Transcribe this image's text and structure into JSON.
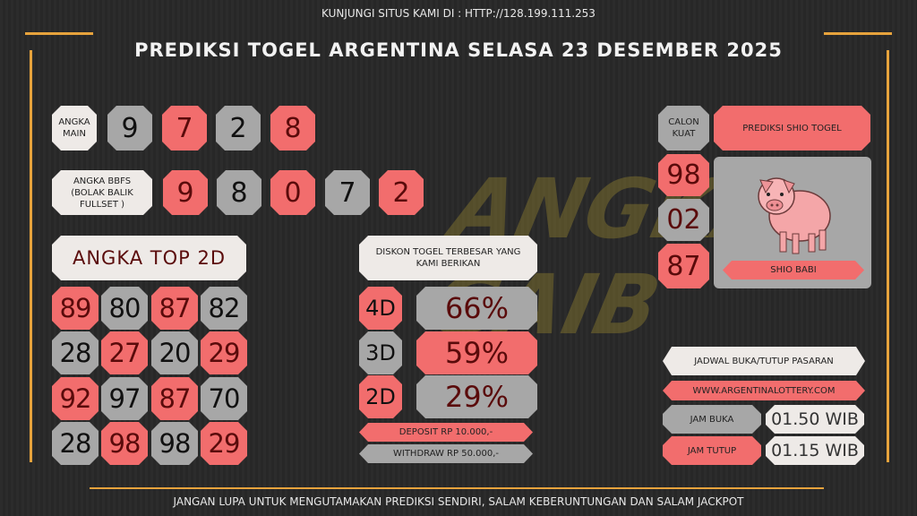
{
  "header": {
    "visit": "KUNJUNGI SITUS KAMI DI : HTTP://128.199.111.253",
    "title": "PREDIKSI TOGEL ARGENTINA SELASA 23 DESEMBER 2025"
  },
  "watermark": "ANGKA GAIB",
  "angka_main": {
    "label": "ANGKA MAIN",
    "digits": [
      "9",
      "7",
      "2",
      "8"
    ]
  },
  "bbfs": {
    "label": "ANGKA BBFS (BOLAK BALIK FULLSET )",
    "digits": [
      "9",
      "8",
      "0",
      "7",
      "2"
    ]
  },
  "top2d": {
    "label": "ANGKA TOP 2D",
    "rows": [
      [
        "89",
        "80",
        "87",
        "82"
      ],
      [
        "28",
        "27",
        "20",
        "29"
      ],
      [
        "92",
        "97",
        "87",
        "70"
      ],
      [
        "28",
        "98",
        "98",
        "29"
      ]
    ]
  },
  "diskon": {
    "label": "DISKON TOGEL TERBESAR YANG KAMI BERIKAN",
    "items": [
      {
        "type": "4D",
        "value": "66%"
      },
      {
        "type": "3D",
        "value": "59%"
      },
      {
        "type": "2D",
        "value": "29%"
      }
    ],
    "deposit": "DEPOSIT RP 10.000,-",
    "withdraw": "WITHDRAW RP 50.000,-"
  },
  "calon_kuat": {
    "label": "CALON KUAT",
    "numbers": [
      "98",
      "02",
      "87"
    ]
  },
  "shio": {
    "label": "PREDIKSI SHIO TOGEL",
    "name": "SHIO BABI",
    "icon": "pig-icon"
  },
  "jadwal": {
    "label": "JADWAL BUKA/TUTUP PASARAN",
    "website": "WWW.ARGENTINALOTTERY.COM",
    "buka_label": "JAM BUKA",
    "buka": "01.50 WIB",
    "tutup_label": "JAM TUTUP",
    "tutup": "01.15 WIB"
  },
  "footer": "JANGAN LUPA UNTUK MENGUTAMAKAN PREDIKSI SENDIRI, SALAM KEBERUNTUNGAN DAN SALAM JACKPOT",
  "colors": {
    "pink": "#f26d6d",
    "gray": "#a7a7a7",
    "light": "#eeeae7",
    "gold": "#e7a33c"
  }
}
